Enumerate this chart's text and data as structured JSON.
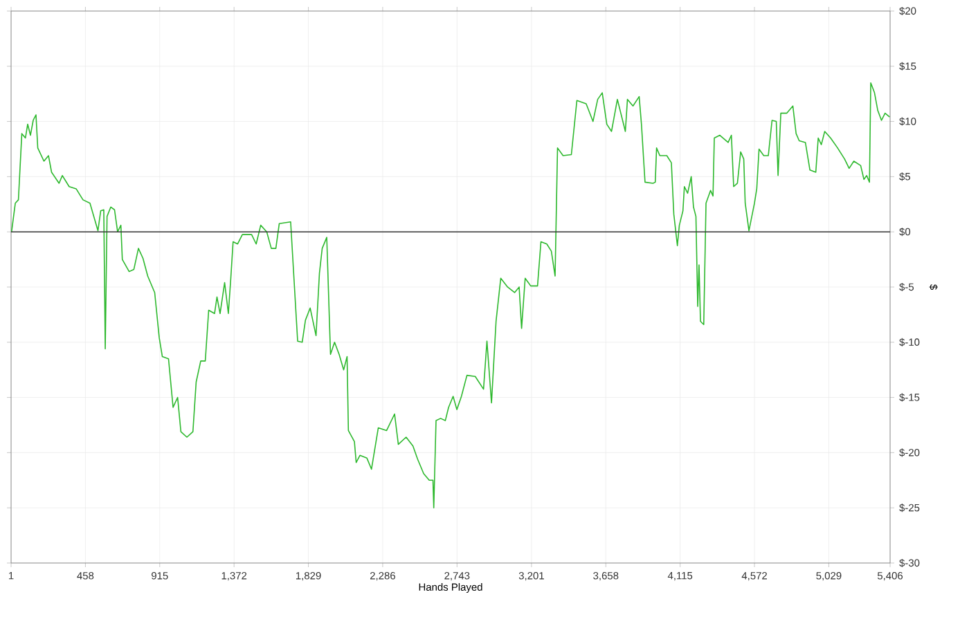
{
  "chart_data": {
    "type": "line",
    "xlabel": "Hands Played",
    "ylabel": "$",
    "x": [
      1,
      4,
      27,
      46,
      67,
      89,
      103,
      120,
      137,
      154,
      165,
      203,
      231,
      250,
      296,
      316,
      358,
      401,
      443,
      486,
      535,
      552,
      571,
      580,
      591,
      614,
      637,
      656,
      676,
      685,
      727,
      756,
      784,
      812,
      841,
      884,
      912,
      931,
      969,
      997,
      1025,
      1045,
      1082,
      1119,
      1139,
      1167,
      1195,
      1216,
      1252,
      1267,
      1286,
      1314,
      1337,
      1352,
      1366,
      1394,
      1423,
      1480,
      1508,
      1536,
      1573,
      1601,
      1629,
      1650,
      1720,
      1763,
      1791,
      1811,
      1840,
      1876,
      1897,
      1914,
      1942,
      1965,
      1990,
      2018,
      2046,
      2067,
      2075,
      2112,
      2123,
      2146,
      2189,
      2217,
      2259,
      2310,
      2359,
      2382,
      2430,
      2472,
      2501,
      2538,
      2572,
      2595,
      2600,
      2614,
      2642,
      2671,
      2691,
      2719,
      2742,
      2770,
      2804,
      2855,
      2906,
      2927,
      2955,
      2983,
      3012,
      3054,
      3097,
      3125,
      3140,
      3162,
      3196,
      3238,
      3259,
      3295,
      3323,
      3346,
      3361,
      3395,
      3446,
      3480,
      3537,
      3579,
      3608,
      3636,
      3664,
      3693,
      3729,
      3778,
      3791,
      3825,
      3863,
      3877,
      3899,
      3948,
      3962,
      3970,
      3990,
      4033,
      4061,
      4076,
      4098,
      4110,
      4132,
      4141,
      4161,
      4183,
      4197,
      4212,
      4223,
      4231,
      4240,
      4260,
      4274,
      4302,
      4317,
      4325,
      4359,
      4410,
      4430,
      4444,
      4467,
      4487,
      4506,
      4515,
      4538,
      4572,
      4586,
      4600,
      4629,
      4657,
      4680,
      4706,
      4717,
      4734,
      4771,
      4808,
      4828,
      4847,
      4885,
      4913,
      4949,
      4964,
      4983,
      5004,
      5040,
      5083,
      5126,
      5154,
      5183,
      5225,
      5245,
      5262,
      5279,
      5287,
      5310,
      5330,
      5353,
      5375,
      5403
    ],
    "series": [
      {
        "color": "#2db82d",
        "values": [
          0,
          0,
          2.6,
          2.9,
          8.9,
          8.5,
          9.75,
          8.75,
          10.1,
          10.6,
          7.6,
          6.4,
          6.9,
          5.4,
          4.4,
          5.1,
          4.1,
          3.9,
          2.9,
          2.6,
          0.1,
          1.9,
          2.0,
          -10.6,
          1.4,
          2.25,
          2.0,
          0,
          0.6,
          -2.5,
          -3.6,
          -3.4,
          -1.5,
          -2.4,
          -4,
          -5.5,
          -9.6,
          -11.3,
          -11.5,
          -15.9,
          -15,
          -18.1,
          -18.6,
          -18.1,
          -13.6,
          -11.7,
          -11.7,
          -7.1,
          -7.4,
          -5.9,
          -7.4,
          -4.6,
          -7.4,
          -4.2,
          -0.9,
          -1.1,
          -0.25,
          -0.25,
          -1.1,
          0.6,
          0,
          -1.5,
          -1.5,
          0.75,
          0.9,
          -9.9,
          -10,
          -8,
          -6.9,
          -9.4,
          -3.75,
          -1.5,
          -0.5,
          -11.1,
          -10,
          -11.1,
          -12.5,
          -11.3,
          -18,
          -19,
          -20.9,
          -20.25,
          -20.5,
          -21.5,
          -17.75,
          -18,
          -16.5,
          -19.25,
          -18.6,
          -19.4,
          -20.6,
          -21.9,
          -22.5,
          -22.5,
          -25,
          -17.1,
          -16.9,
          -17.1,
          -15.9,
          -14.9,
          -16.1,
          -14.9,
          -13,
          -13.1,
          -14.25,
          -9.9,
          -15.5,
          -8.1,
          -4.2,
          -5,
          -5.5,
          -5,
          -8.75,
          -4.2,
          -4.9,
          -4.9,
          -0.9,
          -1.1,
          -1.75,
          -4,
          7.6,
          6.9,
          7.0,
          11.9,
          11.6,
          10,
          12,
          12.6,
          9.75,
          9.1,
          12,
          9.1,
          12,
          11.4,
          12.25,
          9.75,
          4.5,
          4.4,
          4.5,
          7.6,
          6.9,
          6.9,
          6.25,
          1.6,
          -1.25,
          0.6,
          1.9,
          4.1,
          3.5,
          5,
          2.25,
          1.4,
          -6.75,
          -3,
          -8.1,
          -8.4,
          2.6,
          3.75,
          3.25,
          8.5,
          8.75,
          8.1,
          8.75,
          4.1,
          4.4,
          7.25,
          6.6,
          2.6,
          0.1,
          2.6,
          3.9,
          7.5,
          6.9,
          6.9,
          10.1,
          10,
          5.1,
          10.75,
          10.75,
          11.4,
          8.9,
          8.25,
          8.1,
          5.6,
          5.4,
          8.5,
          7.9,
          9.1,
          8.5,
          7.6,
          6.6,
          5.75,
          6.4,
          6.0,
          4.75,
          5.1,
          4.5,
          13.5,
          12.6,
          11,
          10.1,
          10.75,
          10.4
        ]
      }
    ],
    "xlim": [
      1,
      5406
    ],
    "xticks": [
      1,
      458,
      915,
      {
        "value": 1372,
        "label": "1,372"
      },
      {
        "value": 1829,
        "label": "1,829"
      },
      {
        "value": 2286,
        "label": "2,286"
      },
      {
        "value": 2743,
        "label": "2,743"
      },
      {
        "value": 3201,
        "label": "3,201"
      },
      {
        "value": 3658,
        "label": "3,658"
      },
      {
        "value": 4115,
        "label": "4,115"
      },
      {
        "value": 4572,
        "label": "4,572"
      },
      {
        "value": 5029,
        "label": "5,029"
      },
      {
        "value": 5406,
        "label": "5,406"
      }
    ],
    "ylim": [
      -30,
      20
    ],
    "yticks": [
      {
        "value": 20,
        "label": "$20"
      },
      {
        "value": 15,
        "label": "$15"
      },
      {
        "value": 10,
        "label": "$10"
      },
      {
        "value": 5,
        "label": "$5"
      },
      {
        "value": 0,
        "label": "$0"
      },
      {
        "value": -5,
        "label": "$-5"
      },
      {
        "value": -10,
        "label": "$-10"
      },
      {
        "value": -15,
        "label": "$-15"
      },
      {
        "value": -20,
        "label": "$-20"
      },
      {
        "value": -25,
        "label": "$-25"
      },
      {
        "value": -30,
        "label": "$-30"
      }
    ],
    "ref_lines": [
      {
        "axis": "y",
        "value": 0,
        "color": "#333333"
      }
    ],
    "grid": true,
    "marker": "none",
    "line_style": "solid"
  }
}
